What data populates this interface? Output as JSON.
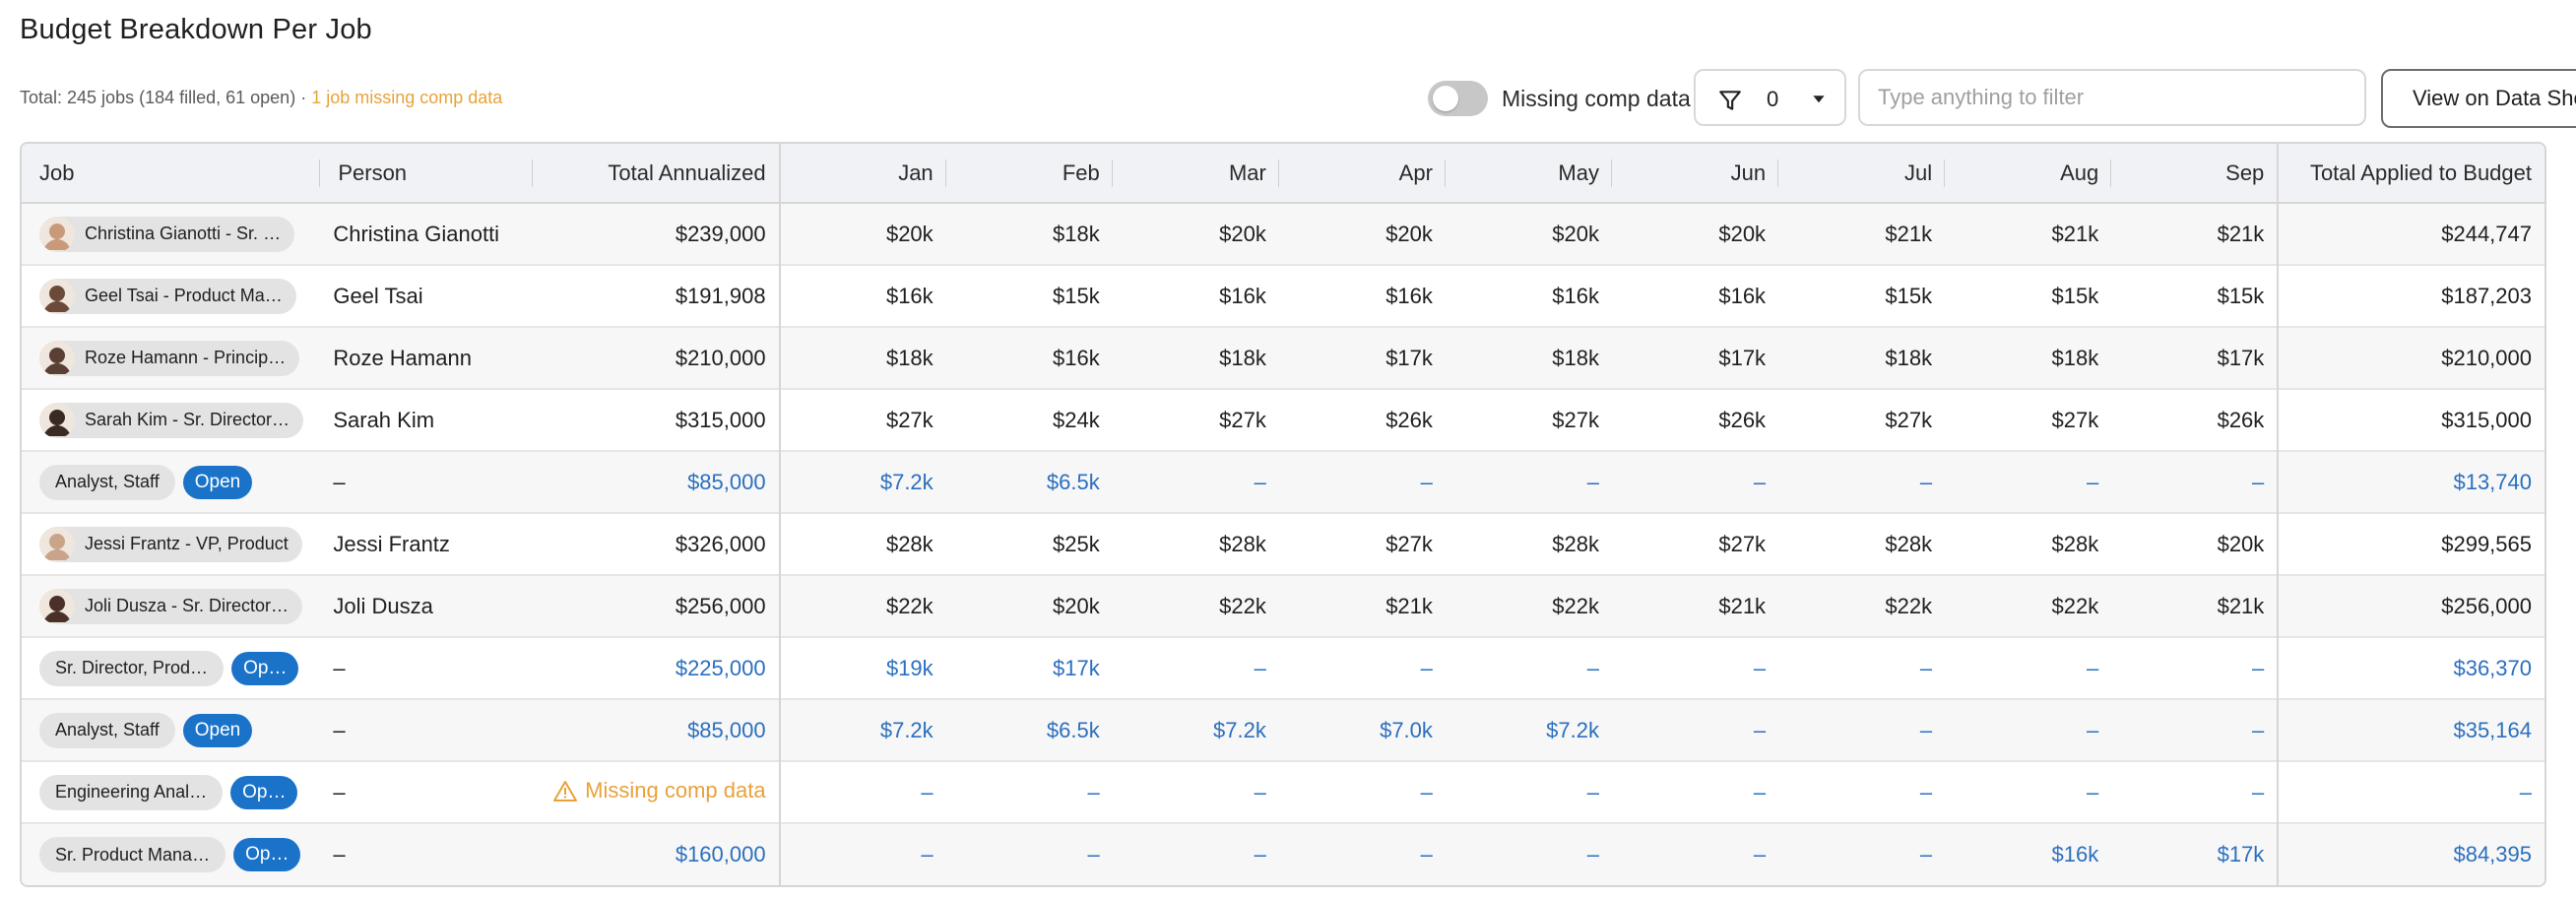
{
  "page": {
    "title": "Budget Breakdown Per Job",
    "summary": "Total: 245 jobs (184 filled, 61 open) ·",
    "summary_warning": "1 job missing comp data"
  },
  "controls": {
    "toggle_label": "Missing comp data",
    "toggle_on": false,
    "filter_count": "0",
    "filter_placeholder": "Type anything to filter",
    "view_button": "View on Data Sheet"
  },
  "table": {
    "columns": [
      "Job",
      "Person",
      "Total Annualized",
      "Jan",
      "Feb",
      "Mar",
      "Apr",
      "May",
      "Jun",
      "Jul",
      "Aug",
      "Sep",
      "Total Applied to Budget"
    ],
    "rows": [
      {
        "job": "Christina Gianotti - Sr. …",
        "avatar_color": "#c99a7a",
        "person": "Christina Gianotti",
        "total": "$239,000",
        "months": [
          "$20k",
          "$18k",
          "$20k",
          "$20k",
          "$20k",
          "$20k",
          "$21k",
          "$21k",
          "$21k"
        ],
        "applied": "$244,747",
        "open": false
      },
      {
        "job": "Geel Tsai - Product Ma…",
        "avatar_color": "#6b4a3a",
        "person": "Geel Tsai",
        "total": "$191,908",
        "months": [
          "$16k",
          "$15k",
          "$16k",
          "$16k",
          "$16k",
          "$16k",
          "$15k",
          "$15k",
          "$15k"
        ],
        "applied": "$187,203",
        "open": false
      },
      {
        "job": "Roze Hamann - Princip…",
        "avatar_color": "#5a4034",
        "person": "Roze Hamann",
        "total": "$210,000",
        "months": [
          "$18k",
          "$16k",
          "$18k",
          "$17k",
          "$18k",
          "$17k",
          "$18k",
          "$18k",
          "$17k"
        ],
        "applied": "$210,000",
        "open": false
      },
      {
        "job": "Sarah Kim - Sr. Director…",
        "avatar_color": "#3a2a24",
        "person": "Sarah Kim",
        "total": "$315,000",
        "months": [
          "$27k",
          "$24k",
          "$27k",
          "$26k",
          "$27k",
          "$26k",
          "$27k",
          "$27k",
          "$26k"
        ],
        "applied": "$315,000",
        "open": false
      },
      {
        "job": "Analyst, Staff",
        "open_label": "Open",
        "person": "–",
        "total": "$85,000",
        "months": [
          "$7.2k",
          "$6.5k",
          "–",
          "–",
          "–",
          "–",
          "–",
          "–",
          "–"
        ],
        "applied": "$13,740",
        "open": true
      },
      {
        "job": "Jessi Frantz - VP, Product",
        "avatar_color": "#c9a48a",
        "person": "Jessi Frantz",
        "total": "$326,000",
        "months": [
          "$28k",
          "$25k",
          "$28k",
          "$27k",
          "$28k",
          "$27k",
          "$28k",
          "$28k",
          "$20k"
        ],
        "applied": "$299,565",
        "open": false
      },
      {
        "job": "Joli Dusza - Sr. Director…",
        "avatar_color": "#4a3028",
        "person": "Joli Dusza",
        "total": "$256,000",
        "months": [
          "$22k",
          "$20k",
          "$22k",
          "$21k",
          "$22k",
          "$21k",
          "$22k",
          "$22k",
          "$21k"
        ],
        "applied": "$256,000",
        "open": false
      },
      {
        "job": "Sr. Director, Prod…",
        "open_label": "Op…",
        "person": "–",
        "total": "$225,000",
        "months": [
          "$19k",
          "$17k",
          "–",
          "–",
          "–",
          "–",
          "–",
          "–",
          "–"
        ],
        "applied": "$36,370",
        "open": true
      },
      {
        "job": "Analyst, Staff",
        "open_label": "Open",
        "person": "–",
        "total": "$85,000",
        "months": [
          "$7.2k",
          "$6.5k",
          "$7.2k",
          "$7.0k",
          "$7.2k",
          "–",
          "–",
          "–",
          "–"
        ],
        "applied": "$35,164",
        "open": true
      },
      {
        "job": "Engineering Anal…",
        "open_label": "Op…",
        "person": "–",
        "total": "Missing comp data",
        "missing": true,
        "months": [
          "–",
          "–",
          "–",
          "–",
          "–",
          "–",
          "–",
          "–",
          "–"
        ],
        "applied": "–",
        "open": true
      },
      {
        "job": "Sr. Product Mana…",
        "open_label": "Op…",
        "person": "–",
        "total": "$160,000",
        "months": [
          "–",
          "–",
          "–",
          "–",
          "–",
          "–",
          "–",
          "$16k",
          "$17k"
        ],
        "applied": "$84,395",
        "open": true
      }
    ]
  }
}
